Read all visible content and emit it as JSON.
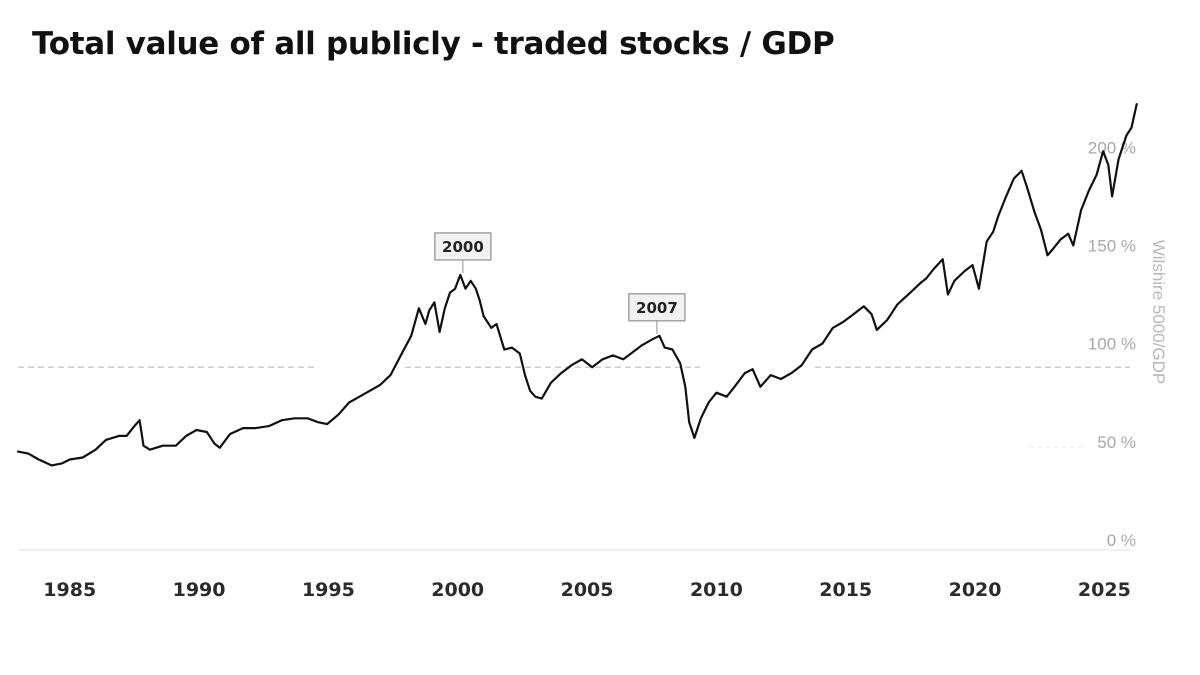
{
  "title": "Total value of all publicly - traded stocks / GDP",
  "chart_data": {
    "type": "line",
    "title": "Total value of all publicly - traded stocks / GDP",
    "ylabel": "Wilshire 5000/GDP",
    "xlabel": "",
    "x_ticks": [
      "1985",
      "1990",
      "1995",
      "2000",
      "2005",
      "2010",
      "2015",
      "2020",
      "2025"
    ],
    "y_ticks": [
      "0 %",
      "50 %",
      "100 %",
      "150 %",
      "200 %"
    ],
    "xlim": [
      1983,
      2026.3
    ],
    "ylim": [
      0,
      220
    ],
    "reference_line": 88,
    "grid": false,
    "legend": "none",
    "line_color": "#111111",
    "annotations": [
      {
        "label": "2000",
        "x": 2000.2,
        "y": 136
      },
      {
        "label": "2007",
        "x": 2007.7,
        "y": 105
      }
    ],
    "series": [
      {
        "name": "",
        "points": [
          [
            1983.0,
            45
          ],
          [
            1983.4,
            44
          ],
          [
            1983.8,
            41
          ],
          [
            1984.3,
            38
          ],
          [
            1984.7,
            39
          ],
          [
            1985.0,
            41
          ],
          [
            1985.5,
            42
          ],
          [
            1986.0,
            46
          ],
          [
            1986.4,
            51
          ],
          [
            1986.9,
            53
          ],
          [
            1987.2,
            53
          ],
          [
            1987.5,
            58
          ],
          [
            1987.7,
            61
          ],
          [
            1987.85,
            48
          ],
          [
            1988.1,
            46
          ],
          [
            1988.6,
            48
          ],
          [
            1989.1,
            48
          ],
          [
            1989.5,
            53
          ],
          [
            1989.9,
            56
          ],
          [
            1990.3,
            55
          ],
          [
            1990.6,
            49
          ],
          [
            1990.8,
            47
          ],
          [
            1991.2,
            54
          ],
          [
            1991.7,
            57
          ],
          [
            1992.2,
            57
          ],
          [
            1992.7,
            58
          ],
          [
            1993.2,
            61
          ],
          [
            1993.7,
            62
          ],
          [
            1994.2,
            62
          ],
          [
            1994.6,
            60
          ],
          [
            1994.95,
            59
          ],
          [
            1995.4,
            64
          ],
          [
            1995.8,
            70
          ],
          [
            1996.2,
            73
          ],
          [
            1996.6,
            76
          ],
          [
            1997.0,
            79
          ],
          [
            1997.4,
            84
          ],
          [
            1997.8,
            94
          ],
          [
            1998.2,
            104
          ],
          [
            1998.5,
            118
          ],
          [
            1998.75,
            110
          ],
          [
            1998.9,
            117
          ],
          [
            1999.1,
            121
          ],
          [
            1999.3,
            106
          ],
          [
            1999.5,
            118
          ],
          [
            1999.7,
            126
          ],
          [
            1999.9,
            128
          ],
          [
            2000.1,
            135
          ],
          [
            2000.3,
            128
          ],
          [
            2000.5,
            132
          ],
          [
            2000.7,
            128
          ],
          [
            2000.85,
            122
          ],
          [
            2001.0,
            114
          ],
          [
            2001.3,
            108
          ],
          [
            2001.5,
            110
          ],
          [
            2001.8,
            97
          ],
          [
            2002.1,
            98
          ],
          [
            2002.4,
            95
          ],
          [
            2002.6,
            84
          ],
          [
            2002.8,
            76
          ],
          [
            2003.0,
            73
          ],
          [
            2003.25,
            72
          ],
          [
            2003.6,
            80
          ],
          [
            2004.0,
            85
          ],
          [
            2004.4,
            89
          ],
          [
            2004.8,
            92
          ],
          [
            2005.2,
            88
          ],
          [
            2005.6,
            92
          ],
          [
            2006.0,
            94
          ],
          [
            2006.4,
            92
          ],
          [
            2006.7,
            95
          ],
          [
            2007.1,
            99
          ],
          [
            2007.5,
            102
          ],
          [
            2007.8,
            104
          ],
          [
            2008.0,
            98
          ],
          [
            2008.3,
            97
          ],
          [
            2008.6,
            90
          ],
          [
            2008.8,
            78
          ],
          [
            2008.95,
            60
          ],
          [
            2009.15,
            52
          ],
          [
            2009.4,
            62
          ],
          [
            2009.7,
            70
          ],
          [
            2010.0,
            75
          ],
          [
            2010.4,
            73
          ],
          [
            2010.7,
            78
          ],
          [
            2011.1,
            85
          ],
          [
            2011.4,
            87
          ],
          [
            2011.7,
            78
          ],
          [
            2012.1,
            84
          ],
          [
            2012.5,
            82
          ],
          [
            2012.9,
            85
          ],
          [
            2013.3,
            89
          ],
          [
            2013.7,
            97
          ],
          [
            2014.1,
            100
          ],
          [
            2014.5,
            108
          ],
          [
            2014.9,
            111
          ],
          [
            2015.3,
            115
          ],
          [
            2015.7,
            119
          ],
          [
            2016.0,
            115
          ],
          [
            2016.2,
            107
          ],
          [
            2016.6,
            112
          ],
          [
            2017.0,
            120
          ],
          [
            2017.5,
            126
          ],
          [
            2017.9,
            131
          ],
          [
            2018.1,
            133
          ],
          [
            2018.4,
            138
          ],
          [
            2018.75,
            143
          ],
          [
            2018.95,
            125
          ],
          [
            2019.2,
            132
          ],
          [
            2019.6,
            137
          ],
          [
            2019.9,
            140
          ],
          [
            2020.15,
            128
          ],
          [
            2020.45,
            152
          ],
          [
            2020.7,
            157
          ],
          [
            2020.9,
            165
          ],
          [
            2021.2,
            175
          ],
          [
            2021.5,
            184
          ],
          [
            2021.8,
            188
          ],
          [
            2022.0,
            180
          ],
          [
            2022.3,
            167
          ],
          [
            2022.55,
            158
          ],
          [
            2022.8,
            145
          ],
          [
            2023.0,
            148
          ],
          [
            2023.3,
            153
          ],
          [
            2023.6,
            156
          ],
          [
            2023.8,
            150
          ],
          [
            2024.1,
            168
          ],
          [
            2024.4,
            178
          ],
          [
            2024.7,
            186
          ],
          [
            2024.95,
            198
          ],
          [
            2025.15,
            191
          ],
          [
            2025.3,
            175
          ],
          [
            2025.55,
            194
          ],
          [
            2025.85,
            206
          ],
          [
            2026.05,
            210
          ],
          [
            2026.25,
            222
          ]
        ]
      }
    ]
  }
}
